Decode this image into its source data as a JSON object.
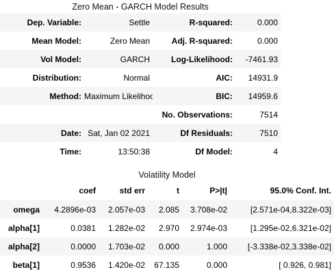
{
  "title": "Zero Mean - GARCH Model Results",
  "summary_rows": [
    {
      "l1": "Dep. Variable:",
      "v1": "Settle",
      "l2": "R-squared:",
      "v2": "0.000"
    },
    {
      "l1": "Mean Model:",
      "v1": "Zero Mean",
      "l2": "Adj. R-squared:",
      "v2": "0.000"
    },
    {
      "l1": "Vol Model:",
      "v1": "GARCH",
      "l2": "Log-Likelihood:",
      "v2": "-7461.93"
    },
    {
      "l1": "Distribution:",
      "v1": "Normal",
      "l2": "AIC:",
      "v2": "14931.9"
    },
    {
      "l1": "Method:",
      "v1": "Maximum Likelihood",
      "l2": "BIC:",
      "v2": "14959.6"
    },
    {
      "l1": "",
      "v1": "",
      "l2": "No. Observations:",
      "v2": "7514"
    },
    {
      "l1": "Date:",
      "v1": "Sat, Jan 02 2021",
      "l2": "Df Residuals:",
      "v2": "7510"
    },
    {
      "l1": "Time:",
      "v1": "13:50:38",
      "l2": "Df Model:",
      "v2": "4"
    }
  ],
  "vol_title": "Volatility Model",
  "vol_headers": [
    "",
    "coef",
    "std err",
    "t",
    "P>|t|",
    "95.0% Conf. Int."
  ],
  "vol_rows": [
    {
      "name": "omega",
      "coef": "4.2896e-03",
      "se": "2.057e-03",
      "t": "2.085",
      "p": "3.708e-02",
      "ci": "[2.571e-04,8.322e-03]"
    },
    {
      "name": "alpha[1]",
      "coef": "0.0381",
      "se": "1.282e-02",
      "t": "2.970",
      "p": "2.974e-03",
      "ci": "[1.295e-02,6.321e-02]"
    },
    {
      "name": "alpha[2]",
      "coef": "0.0000",
      "se": "1.703e-02",
      "t": "0.000",
      "p": "1.000",
      "ci": "[-3.338e-02,3.338e-02]"
    },
    {
      "name": "beta[1]",
      "coef": "0.9536",
      "se": "1.420e-02",
      "t": "67.135",
      "p": "0.000",
      "ci": "[ 0.926, 0.981]"
    }
  ]
}
